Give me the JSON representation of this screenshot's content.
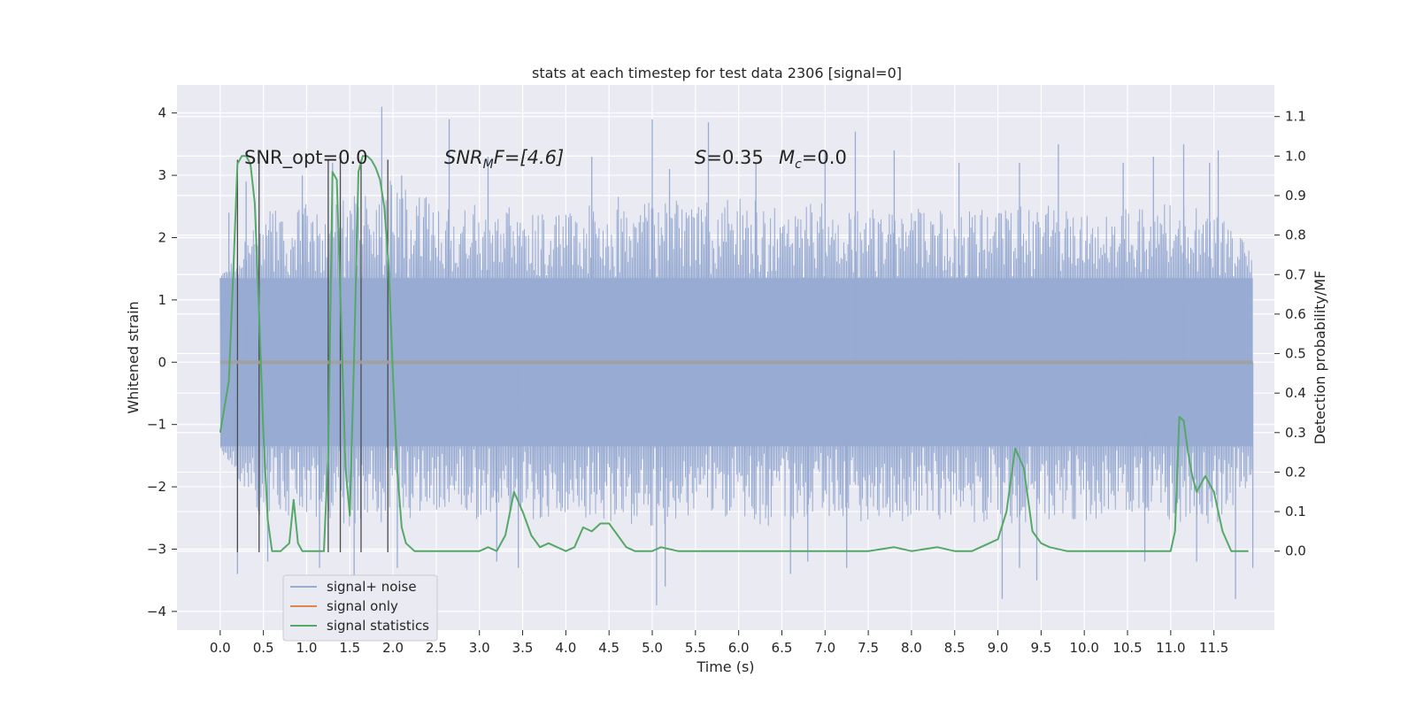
{
  "chart_data": {
    "type": "line",
    "title": "stats at each timestep for test data 2306 [signal=0]",
    "xlabel": "Time (s)",
    "ylabel": "Whitened strain",
    "ylabel_right": "Detection probability/MF",
    "xlim": [
      -0.5,
      12.2
    ],
    "ylim": [
      -4.3,
      4.45
    ],
    "ylim_right": [
      -0.2,
      1.18
    ],
    "x_ticks": [
      "0.0",
      "0.5",
      "1.0",
      "1.5",
      "2.0",
      "2.5",
      "3.0",
      "3.5",
      "4.0",
      "4.5",
      "5.0",
      "5.5",
      "6.0",
      "6.5",
      "7.0",
      "7.5",
      "8.0",
      "8.5",
      "9.0",
      "9.5",
      "10.0",
      "10.5",
      "11.0",
      "11.5"
    ],
    "y_ticks_left": [
      "−4",
      "−3",
      "−2",
      "−1",
      "0",
      "1",
      "2",
      "3",
      "4"
    ],
    "y_ticks_right": [
      "0.0",
      "0.1",
      "0.2",
      "0.3",
      "0.4",
      "0.5",
      "0.6",
      "0.7",
      "0.8",
      "0.9",
      "1.0",
      "1.1"
    ],
    "grid": true,
    "legend_placement": "lower-left",
    "legend": [
      "signal+ noise",
      "signal only",
      "signal statistics"
    ],
    "annotations": {
      "snr_opt": "SNR_opt=0.0",
      "snr_mf_name": "SNR",
      "snr_mf_sub": "M",
      "snr_mf_rest": "F=[4.6]",
      "s_name": "S",
      "s_rest": "=0.35",
      "mc_name": "M",
      "mc_sub": "c",
      "mc_rest": "=0.0"
    },
    "series": [
      {
        "name": "signal+ noise",
        "color": "#98abd2",
        "x_range": [
          0.0,
          11.95
        ],
        "band_typical": [
          -1.35,
          1.35
        ],
        "envelope_upper": [
          [
            0.0,
            1.4
          ],
          [
            0.5,
            2.4
          ],
          [
            1.0,
            2.5
          ],
          [
            1.5,
            2.6
          ],
          [
            2.0,
            2.9
          ],
          [
            2.5,
            2.5
          ],
          [
            3.0,
            2.5
          ],
          [
            3.5,
            2.4
          ],
          [
            4.0,
            2.4
          ],
          [
            4.5,
            2.6
          ],
          [
            5.0,
            2.6
          ],
          [
            5.5,
            2.5
          ],
          [
            6.0,
            2.6
          ],
          [
            6.5,
            2.5
          ],
          [
            7.0,
            2.5
          ],
          [
            7.5,
            2.4
          ],
          [
            8.0,
            2.4
          ],
          [
            8.5,
            2.5
          ],
          [
            9.0,
            2.4
          ],
          [
            9.5,
            2.5
          ],
          [
            10.0,
            2.4
          ],
          [
            10.5,
            2.4
          ],
          [
            11.0,
            2.5
          ],
          [
            11.5,
            2.4
          ],
          [
            11.95,
            1.8
          ]
        ],
        "envelope_lower": [
          [
            0.0,
            -1.4
          ],
          [
            0.5,
            -2.5
          ],
          [
            1.0,
            -2.5
          ],
          [
            1.5,
            -2.6
          ],
          [
            2.0,
            -2.5
          ],
          [
            2.5,
            -2.4
          ],
          [
            3.0,
            -2.5
          ],
          [
            3.5,
            -2.5
          ],
          [
            4.0,
            -2.4
          ],
          [
            4.5,
            -2.5
          ],
          [
            5.0,
            -2.6
          ],
          [
            5.5,
            -2.4
          ],
          [
            6.0,
            -2.5
          ],
          [
            6.5,
            -2.6
          ],
          [
            7.0,
            -2.5
          ],
          [
            7.5,
            -2.5
          ],
          [
            8.0,
            -2.5
          ],
          [
            8.5,
            -2.5
          ],
          [
            9.0,
            -2.6
          ],
          [
            9.5,
            -2.5
          ],
          [
            10.0,
            -2.5
          ],
          [
            10.5,
            -2.4
          ],
          [
            11.0,
            -2.5
          ],
          [
            11.5,
            -2.6
          ],
          [
            11.95,
            -1.9
          ]
        ],
        "peaks_upper": [
          [
            0.1,
            2.4
          ],
          [
            0.3,
            2.9
          ],
          [
            0.95,
            3.0
          ],
          [
            1.3,
            3.2
          ],
          [
            1.87,
            4.1
          ],
          [
            2.1,
            3.0
          ],
          [
            2.65,
            3.9
          ],
          [
            3.1,
            3.3
          ],
          [
            4.3,
            3.3
          ],
          [
            5.0,
            3.9
          ],
          [
            5.2,
            3.1
          ],
          [
            5.65,
            3.85
          ],
          [
            6.2,
            3.2
          ],
          [
            7.0,
            3.4
          ],
          [
            7.35,
            3.7
          ],
          [
            7.8,
            3.4
          ],
          [
            8.55,
            3.2
          ],
          [
            9.25,
            3.2
          ],
          [
            9.7,
            3.5
          ],
          [
            10.45,
            3.2
          ],
          [
            10.8,
            3.3
          ],
          [
            11.15,
            3.5
          ],
          [
            11.45,
            3.2
          ],
          [
            11.55,
            3.4
          ]
        ],
        "peaks_lower": [
          [
            0.2,
            -3.4
          ],
          [
            0.55,
            -3.2
          ],
          [
            1.15,
            -3.3
          ],
          [
            1.55,
            -3.5
          ],
          [
            2.05,
            -3.3
          ],
          [
            3.2,
            -3.2
          ],
          [
            3.45,
            -3.3
          ],
          [
            5.05,
            -3.9
          ],
          [
            5.15,
            -3.6
          ],
          [
            6.6,
            -3.4
          ],
          [
            6.8,
            -3.2
          ],
          [
            7.25,
            -3.3
          ],
          [
            9.05,
            -3.8
          ],
          [
            9.25,
            -3.3
          ],
          [
            9.45,
            -3.5
          ],
          [
            10.7,
            -3.2
          ],
          [
            11.3,
            -3.2
          ],
          [
            11.75,
            -3.8
          ],
          [
            11.95,
            -3.3
          ]
        ]
      },
      {
        "name": "signal only",
        "color": "#dd8452",
        "x": [
          0.0,
          11.95
        ],
        "y": [
          0.0,
          0.0
        ]
      },
      {
        "name": "signal statistics",
        "color": "#55a868",
        "axis": "right",
        "x": [
          0.0,
          0.1,
          0.15,
          0.2,
          0.25,
          0.3,
          0.35,
          0.4,
          0.45,
          0.5,
          0.55,
          0.6,
          0.65,
          0.7,
          0.8,
          0.85,
          0.9,
          0.95,
          1.0,
          1.05,
          1.1,
          1.2,
          1.25,
          1.3,
          1.35,
          1.4,
          1.45,
          1.5,
          1.55,
          1.6,
          1.65,
          1.7,
          1.75,
          1.8,
          1.85,
          1.9,
          1.95,
          2.0,
          2.05,
          2.1,
          2.15,
          2.2,
          2.25,
          2.3,
          2.35,
          2.4,
          2.5,
          2.6,
          2.8,
          3.0,
          3.1,
          3.2,
          3.3,
          3.4,
          3.5,
          3.6,
          3.7,
          3.8,
          3.9,
          4.0,
          4.1,
          4.2,
          4.3,
          4.4,
          4.5,
          4.6,
          4.7,
          4.8,
          4.9,
          5.0,
          5.1,
          5.3,
          5.5,
          5.7,
          6.0,
          6.5,
          7.0,
          7.5,
          7.8,
          8.0,
          8.3,
          8.5,
          8.7,
          8.9,
          9.0,
          9.1,
          9.2,
          9.3,
          9.4,
          9.5,
          9.6,
          9.8,
          10.0,
          10.5,
          11.0,
          11.05,
          11.1,
          11.15,
          11.2,
          11.25,
          11.3,
          11.35,
          11.4,
          11.5,
          11.6,
          11.7,
          11.8,
          11.9
        ],
        "y": [
          0.3,
          0.43,
          0.7,
          0.98,
          1.0,
          1.0,
          0.98,
          0.88,
          0.6,
          0.3,
          0.08,
          0.0,
          0.0,
          0.0,
          0.02,
          0.13,
          0.02,
          0.0,
          0.0,
          0.0,
          0.0,
          0.0,
          0.25,
          0.96,
          0.94,
          0.58,
          0.21,
          0.09,
          0.5,
          0.96,
          1.0,
          1.0,
          0.99,
          0.97,
          0.94,
          0.87,
          0.72,
          0.44,
          0.2,
          0.06,
          0.02,
          0.01,
          0.0,
          0.0,
          0.0,
          0.0,
          0.0,
          0.0,
          0.0,
          0.0,
          0.01,
          0.0,
          0.04,
          0.15,
          0.1,
          0.04,
          0.01,
          0.02,
          0.01,
          0.0,
          0.01,
          0.06,
          0.05,
          0.07,
          0.07,
          0.04,
          0.01,
          0.0,
          0.0,
          0.0,
          0.01,
          0.0,
          0.0,
          0.0,
          0.0,
          0.0,
          0.0,
          0.0,
          0.01,
          0.0,
          0.01,
          0.0,
          0.0,
          0.02,
          0.03,
          0.1,
          0.26,
          0.21,
          0.05,
          0.02,
          0.01,
          0.0,
          0.0,
          0.0,
          0.0,
          0.05,
          0.34,
          0.33,
          0.25,
          0.19,
          0.15,
          0.17,
          0.19,
          0.15,
          0.05,
          0.0,
          0.0,
          0.0
        ]
      }
    ],
    "vertical_markers": {
      "color": "#4c4c4c",
      "x": [
        0.2,
        0.45,
        1.25,
        1.39,
        1.63,
        1.94
      ],
      "y_range": [
        -3.05,
        3.25
      ]
    }
  }
}
